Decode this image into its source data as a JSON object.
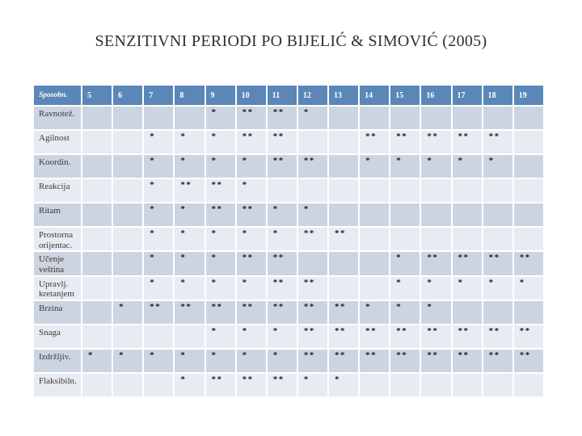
{
  "slide": {
    "title": "SENZITIVNI PERIODI PO BIJELIĆ & SIMOVIĆ (2005)"
  },
  "table": {
    "header_label": "Sposobn.",
    "ages": [
      "5",
      "6",
      "7",
      "8",
      "9",
      "10",
      "11",
      "12",
      "13",
      "14",
      "15",
      "16",
      "17",
      "18",
      "19"
    ],
    "rows": [
      {
        "label": "Ravnotež.",
        "marks": [
          "",
          "",
          "",
          "",
          "*",
          "**",
          "**",
          "*",
          "",
          "",
          "",
          "",
          "",
          "",
          ""
        ]
      },
      {
        "label": "Agilnost",
        "marks": [
          "",
          "",
          "*",
          "*",
          "*",
          "**",
          "**",
          "",
          "",
          "**",
          "**",
          "**",
          "**",
          "**",
          ""
        ]
      },
      {
        "label": "Koordin.",
        "marks": [
          "",
          "",
          "*",
          "*",
          "*",
          "*",
          "**",
          "**",
          "",
          "*",
          "*",
          "*",
          "*",
          "*",
          ""
        ]
      },
      {
        "label": "Reakcija",
        "marks": [
          "",
          "",
          "*",
          "**",
          "**",
          "*",
          "",
          "",
          "",
          "",
          "",
          "",
          "",
          "",
          ""
        ]
      },
      {
        "label": "Ritam",
        "marks": [
          "",
          "",
          "*",
          "*",
          "**",
          "**",
          "*",
          "*",
          "",
          "",
          "",
          "",
          "",
          "",
          ""
        ]
      },
      {
        "label": "Prostorna orijentac.",
        "marks": [
          "",
          "",
          "*",
          "*",
          "*",
          "*",
          "*",
          "**",
          "**",
          "",
          "",
          "",
          "",
          "",
          ""
        ]
      },
      {
        "label": "Učenje veština",
        "marks": [
          "",
          "",
          "*",
          "*",
          "*",
          "**",
          "**",
          "",
          "",
          "",
          "*",
          "**",
          "**",
          "**",
          "**"
        ]
      },
      {
        "label": "Upravlj. kretanjem",
        "marks": [
          "",
          "",
          "*",
          "*",
          "*",
          "*",
          "**",
          "**",
          "",
          "",
          "*",
          "*",
          "*",
          "*",
          "*"
        ]
      },
      {
        "label": "Brzina",
        "marks": [
          "",
          "*",
          "**",
          "**",
          "**",
          "**",
          "**",
          "**",
          "**",
          "*",
          "*",
          "*",
          "",
          "",
          ""
        ]
      },
      {
        "label": "Snaga",
        "marks": [
          "",
          "",
          "",
          "",
          "*",
          "*",
          "*",
          "**",
          "**",
          "**",
          "**",
          "**",
          "**",
          "**",
          "**"
        ]
      },
      {
        "label": "Izdržljiv.",
        "marks": [
          "*",
          "*",
          "*",
          "*",
          "*",
          "*",
          "*",
          "**",
          "**",
          "**",
          "**",
          "**",
          "**",
          "**",
          "**"
        ]
      },
      {
        "label": "Flaksibiln.",
        "marks": [
          "",
          "",
          "",
          "*",
          "**",
          "**",
          "**",
          "*",
          "*",
          "",
          "",
          "",
          "",
          "",
          ""
        ]
      }
    ]
  },
  "colors": {
    "header_bg": "#5b87b8",
    "header_text": "#ffffff",
    "row_band_dark": "#cdd4e1",
    "row_band_light": "#e9ebf2",
    "label_text": "#3c3935",
    "marker_color": "#1d1d26",
    "title_color": "#332f2b"
  }
}
